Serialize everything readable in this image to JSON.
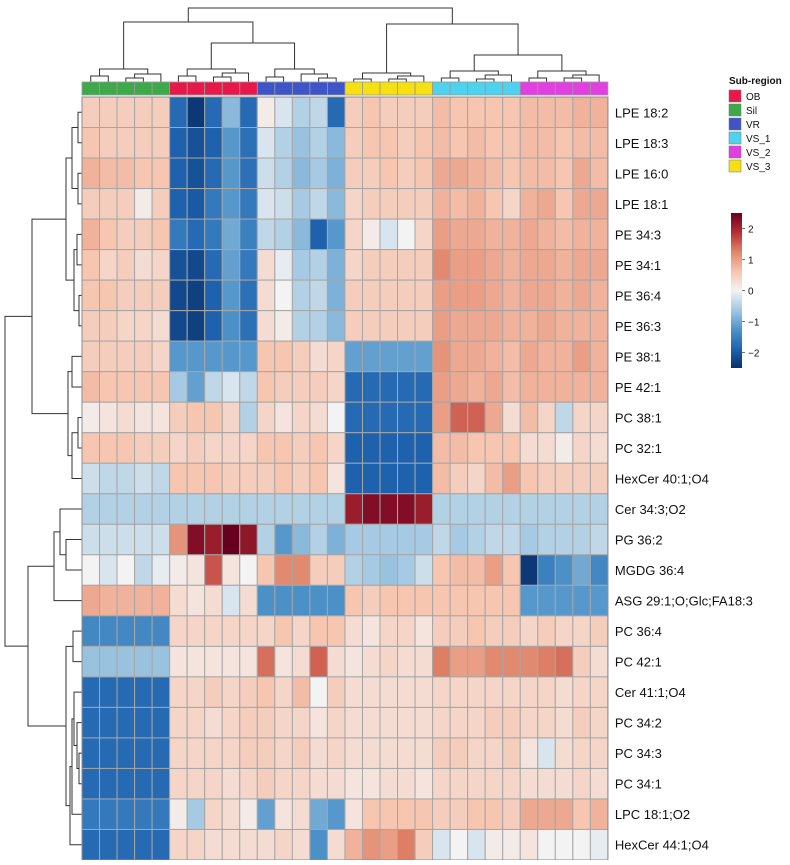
{
  "chart_data": {
    "type": "heatmap",
    "title": "",
    "legend_title": "Sub-region",
    "color_scale": {
      "ticks": [
        2,
        1,
        0,
        -1,
        -2
      ],
      "tick_labels": [
        "2",
        "1",
        "0",
        "−1",
        "−2"
      ],
      "range": [
        -2.5,
        2.5
      ],
      "stops": [
        "#08306b",
        "#1f64b0",
        "#4f94c9",
        "#a3c8e2",
        "#f3f3f3",
        "#f6c4ae",
        "#e08569",
        "#b72d34",
        "#67001f"
      ]
    },
    "groups": [
      {
        "name": "OB",
        "color": "#e8194a"
      },
      {
        "name": "Sil",
        "color": "#3ea94a"
      },
      {
        "name": "VR",
        "color": "#3d55c9"
      },
      {
        "name": "VS_1",
        "color": "#4fd2ee"
      },
      {
        "name": "VS_2",
        "color": "#e13fe0"
      },
      {
        "name": "VS_3",
        "color": "#f6e012"
      }
    ],
    "sample_groups": [
      "Sil",
      "Sil",
      "Sil",
      "Sil",
      "Sil",
      "OB",
      "OB",
      "OB",
      "OB",
      "OB",
      "VR",
      "VR",
      "VR",
      "VR",
      "VR",
      "VS_3",
      "VS_3",
      "VS_3",
      "VS_3",
      "VS_3",
      "VS_1",
      "VS_1",
      "VS_1",
      "VS_1",
      "VS_1",
      "VS_2",
      "VS_2",
      "VS_2",
      "VS_2",
      "VS_2"
    ],
    "rows": [
      "LPE 18:2",
      "LPE 18:3",
      "LPE 16:0",
      "LPE 18:1",
      "PE 34:3",
      "PE 34:1",
      "PE 36:4",
      "PE 36:3",
      "PE 38:1",
      "PE 42:1",
      "PC 38:1",
      "PC 32:1",
      "HexCer 40:1;O4",
      "Cer 34:3;O2",
      "PG 36:2",
      "MGDG 36:4",
      "ASG 29:1;O;Glc;FA18:3",
      "PC 36:4",
      "PC 42:1",
      "Cer 41:1;O4",
      "PC 34:2",
      "PC 34:3",
      "PC 34:1",
      "LPC 18:1;O2",
      "HexCer 44:1;O4"
    ],
    "values": [
      [
        0.5,
        0.5,
        0.5,
        0.5,
        0.5,
        -1.8,
        -2.4,
        -1.8,
        -0.8,
        -1.8,
        0.1,
        -0.2,
        -0.5,
        -0.4,
        -1.8,
        0.5,
        0.6,
        0.5,
        0.5,
        0.5,
        0.7,
        0.6,
        0.6,
        0.6,
        0.6,
        0.7,
        0.7,
        0.7,
        0.8,
        0.8
      ],
      [
        0.6,
        0.5,
        0.5,
        0.5,
        0.5,
        -1.9,
        -2.1,
        -1.9,
        -1.2,
        -1.7,
        -0.2,
        -0.5,
        -0.7,
        -0.5,
        -0.8,
        0.5,
        0.6,
        0.6,
        0.5,
        0.6,
        0.7,
        0.6,
        0.7,
        0.6,
        0.6,
        0.7,
        0.7,
        0.6,
        0.7,
        0.7
      ],
      [
        0.8,
        0.7,
        0.7,
        0.6,
        0.6,
        -1.9,
        -2.1,
        -1.8,
        -1.2,
        -1.7,
        -0.3,
        -0.5,
        -0.8,
        -0.6,
        -0.9,
        0.5,
        0.5,
        0.6,
        0.5,
        0.6,
        0.9,
        0.9,
        0.8,
        0.7,
        0.6,
        0.7,
        0.7,
        0.6,
        0.9,
        0.7
      ],
      [
        0.5,
        0.5,
        0.5,
        0.1,
        0.5,
        -1.9,
        -2.0,
        -1.6,
        -1.2,
        -1.6,
        -0.2,
        -0.3,
        -0.6,
        -0.4,
        -0.8,
        0.4,
        0.5,
        0.5,
        0.5,
        0.5,
        0.8,
        0.7,
        0.8,
        0.6,
        0.4,
        0.8,
        0.9,
        0.6,
        0.9,
        0.9
      ],
      [
        0.8,
        0.6,
        0.5,
        0.5,
        0.6,
        -1.6,
        -1.8,
        -1.6,
        -1.0,
        -1.5,
        -0.4,
        -0.5,
        -0.8,
        -1.9,
        -1.2,
        0.4,
        0.1,
        -0.2,
        0.0,
        0.4,
        1.0,
        0.9,
        0.9,
        0.8,
        0.8,
        0.9,
        0.8,
        0.7,
        0.8,
        0.8
      ],
      [
        0.6,
        0.4,
        0.5,
        0.3,
        0.4,
        -2.1,
        -2.2,
        -1.8,
        -1.1,
        -1.6,
        0.3,
        -0.1,
        -0.6,
        -0.5,
        -0.9,
        0.4,
        0.5,
        0.5,
        0.5,
        0.5,
        1.2,
        1.0,
        1.0,
        0.9,
        0.8,
        0.9,
        0.9,
        0.8,
        0.9,
        0.9
      ],
      [
        0.6,
        0.6,
        0.5,
        0.5,
        0.5,
        -2.2,
        -2.3,
        -1.9,
        -1.2,
        -1.7,
        0.3,
        0.0,
        -0.5,
        -0.4,
        -0.9,
        0.5,
        0.5,
        0.5,
        0.5,
        0.5,
        1.0,
        1.0,
        1.0,
        0.9,
        0.8,
        0.9,
        0.9,
        0.8,
        0.9,
        0.8
      ],
      [
        0.5,
        0.5,
        0.4,
        0.4,
        0.3,
        -2.2,
        -2.3,
        -1.9,
        -1.3,
        -1.7,
        0.3,
        0.1,
        -0.5,
        -0.5,
        -0.8,
        0.5,
        0.5,
        0.5,
        0.5,
        0.5,
        1.0,
        0.9,
        0.9,
        0.9,
        0.8,
        0.8,
        0.9,
        0.8,
        0.8,
        0.8
      ],
      [
        0.5,
        0.5,
        0.5,
        0.5,
        0.4,
        -1.2,
        -1.2,
        -1.2,
        -1.2,
        -1.2,
        0.6,
        0.6,
        0.5,
        0.3,
        0.4,
        -1.1,
        -1.1,
        -1.1,
        -1.1,
        -1.1,
        1.1,
        0.9,
        0.9,
        0.8,
        0.7,
        0.9,
        0.8,
        0.8,
        1.0,
        0.8
      ],
      [
        0.7,
        0.6,
        0.6,
        0.6,
        0.6,
        -0.6,
        -1.1,
        -0.4,
        -0.2,
        -0.4,
        0.6,
        0.5,
        0.5,
        0.5,
        0.4,
        -1.8,
        -1.8,
        -1.8,
        -1.8,
        -1.8,
        1.0,
        0.9,
        0.8,
        0.9,
        0.7,
        0.8,
        0.8,
        0.8,
        0.8,
        0.8
      ],
      [
        0.1,
        0.2,
        0.3,
        0.2,
        0.2,
        0.5,
        0.6,
        0.6,
        0.4,
        -0.5,
        0.4,
        0.2,
        0.4,
        0.3,
        0.0,
        -1.8,
        -1.8,
        -1.8,
        -1.8,
        -1.8,
        1.0,
        1.5,
        1.5,
        0.9,
        0.3,
        0.7,
        0.4,
        -0.4,
        0.4,
        0.4
      ],
      [
        0.6,
        0.6,
        0.6,
        0.5,
        0.5,
        0.4,
        0.5,
        0.4,
        0.4,
        0.4,
        0.6,
        0.6,
        0.5,
        0.6,
        0.4,
        -1.9,
        -1.9,
        -1.9,
        -1.9,
        -1.9,
        0.7,
        0.7,
        0.6,
        0.6,
        0.6,
        0.3,
        0.3,
        0.1,
        0.4,
        0.3
      ],
      [
        -0.3,
        -0.4,
        -0.4,
        -0.3,
        -0.4,
        0.6,
        0.6,
        0.6,
        0.5,
        0.5,
        0.5,
        0.6,
        0.5,
        0.6,
        0.2,
        -1.9,
        -1.9,
        -1.9,
        -1.9,
        -1.9,
        0.7,
        0.5,
        0.4,
        0.7,
        1.0,
        0.6,
        0.5,
        0.5,
        0.5,
        0.5
      ],
      [
        -0.5,
        -0.5,
        -0.5,
        -0.5,
        -0.5,
        -0.5,
        -0.5,
        -0.5,
        -0.5,
        -0.5,
        -0.5,
        -0.5,
        -0.5,
        -0.5,
        -0.5,
        2.1,
        2.3,
        2.3,
        2.3,
        2.1,
        -0.5,
        -0.5,
        -0.5,
        -0.5,
        -0.5,
        -0.5,
        -0.5,
        -0.5,
        -0.5,
        -0.5
      ],
      [
        -0.3,
        -0.3,
        -0.3,
        -0.3,
        -0.3,
        1.1,
        2.3,
        2.1,
        2.6,
        2.2,
        -0.5,
        -1.2,
        -0.8,
        -0.5,
        -0.9,
        -0.6,
        -0.6,
        -0.6,
        -0.6,
        -0.6,
        -0.4,
        -0.6,
        -0.5,
        -0.4,
        -0.4,
        -0.6,
        -0.5,
        -0.5,
        -0.5,
        -0.4
      ],
      [
        0.0,
        -0.2,
        0.0,
        -0.4,
        -0.1,
        0.1,
        0.2,
        1.6,
        0.2,
        0.0,
        0.6,
        1.2,
        1.2,
        0.5,
        0.5,
        -0.5,
        -0.6,
        -0.7,
        -0.6,
        -0.3,
        0.6,
        0.7,
        0.7,
        1.0,
        0.6,
        -2.4,
        -1.5,
        -1.3,
        -1.0,
        -1.4
      ],
      [
        0.9,
        0.8,
        0.8,
        0.8,
        0.8,
        0.3,
        0.2,
        0.3,
        -0.2,
        0.3,
        -1.3,
        -1.3,
        -1.3,
        -1.3,
        -1.3,
        0.6,
        0.5,
        0.6,
        0.6,
        0.6,
        0.6,
        0.6,
        0.6,
        0.6,
        0.6,
        -1.2,
        -1.2,
        -1.2,
        -1.2,
        -1.2
      ],
      [
        -1.4,
        -1.4,
        -1.4,
        -1.4,
        -1.4,
        0.4,
        0.4,
        0.4,
        0.4,
        0.4,
        0.4,
        0.6,
        0.4,
        0.6,
        0.6,
        0.3,
        0.2,
        0.4,
        0.4,
        0.2,
        0.5,
        0.5,
        0.6,
        0.5,
        0.5,
        0.4,
        0.5,
        0.4,
        0.4,
        0.5
      ],
      [
        -0.7,
        -0.7,
        -0.7,
        -0.7,
        -0.7,
        0.2,
        0.2,
        0.2,
        0.2,
        0.2,
        1.4,
        0.2,
        0.3,
        1.5,
        0.3,
        0.2,
        0.3,
        0.4,
        0.3,
        0.3,
        1.3,
        1.0,
        1.0,
        1.2,
        1.2,
        1.2,
        1.3,
        1.4,
        0.5,
        0.3
      ],
      [
        -1.8,
        -1.8,
        -1.8,
        -1.8,
        -1.8,
        0.4,
        0.4,
        0.5,
        0.4,
        0.5,
        0.6,
        0.4,
        0.7,
        0.0,
        0.5,
        0.3,
        0.3,
        0.3,
        0.3,
        0.3,
        0.4,
        0.4,
        0.4,
        0.4,
        0.4,
        0.4,
        0.4,
        0.3,
        0.4,
        0.4
      ],
      [
        -1.8,
        -1.8,
        -1.8,
        -1.8,
        -1.8,
        0.4,
        0.4,
        0.3,
        0.4,
        0.5,
        0.5,
        0.4,
        0.4,
        0.2,
        0.4,
        0.3,
        0.3,
        0.3,
        0.3,
        0.3,
        0.4,
        0.4,
        0.4,
        0.5,
        0.5,
        0.4,
        0.4,
        0.3,
        0.5,
        0.4
      ],
      [
        -1.8,
        -1.8,
        -1.8,
        -1.8,
        -1.8,
        0.4,
        0.4,
        0.4,
        0.4,
        0.5,
        0.5,
        0.4,
        0.5,
        0.3,
        0.4,
        0.3,
        0.3,
        0.3,
        0.3,
        0.3,
        0.5,
        0.5,
        0.4,
        0.4,
        0.5,
        0.2,
        -0.2,
        0.3,
        0.4,
        0.4
      ],
      [
        -1.8,
        -1.8,
        -1.8,
        -1.8,
        -1.8,
        0.4,
        0.4,
        0.4,
        0.3,
        0.4,
        0.5,
        0.4,
        0.4,
        0.3,
        0.3,
        0.2,
        0.2,
        0.3,
        0.3,
        0.2,
        0.4,
        0.4,
        0.4,
        0.4,
        0.4,
        0.3,
        0.3,
        0.3,
        0.4,
        0.3
      ],
      [
        -1.6,
        -1.6,
        -1.6,
        -1.6,
        -1.6,
        0.1,
        -0.6,
        0.4,
        0.3,
        0.1,
        -1.1,
        0.2,
        0.3,
        -1.0,
        -1.2,
        0.2,
        0.6,
        0.6,
        0.6,
        0.6,
        0.5,
        0.5,
        0.6,
        0.6,
        0.5,
        0.9,
        0.9,
        0.9,
        0.6,
        0.8
      ],
      [
        -1.8,
        -1.8,
        -1.8,
        -1.8,
        -1.8,
        0.4,
        0.4,
        0.3,
        0.3,
        0.3,
        0.3,
        0.4,
        0.3,
        -1.3,
        0.3,
        0.8,
        1.1,
        1.0,
        1.3,
        0.5,
        -0.2,
        0.0,
        -0.2,
        0.1,
        0.1,
        0.2,
        0.0,
        0.0,
        0.0,
        -0.1
      ]
    ]
  }
}
